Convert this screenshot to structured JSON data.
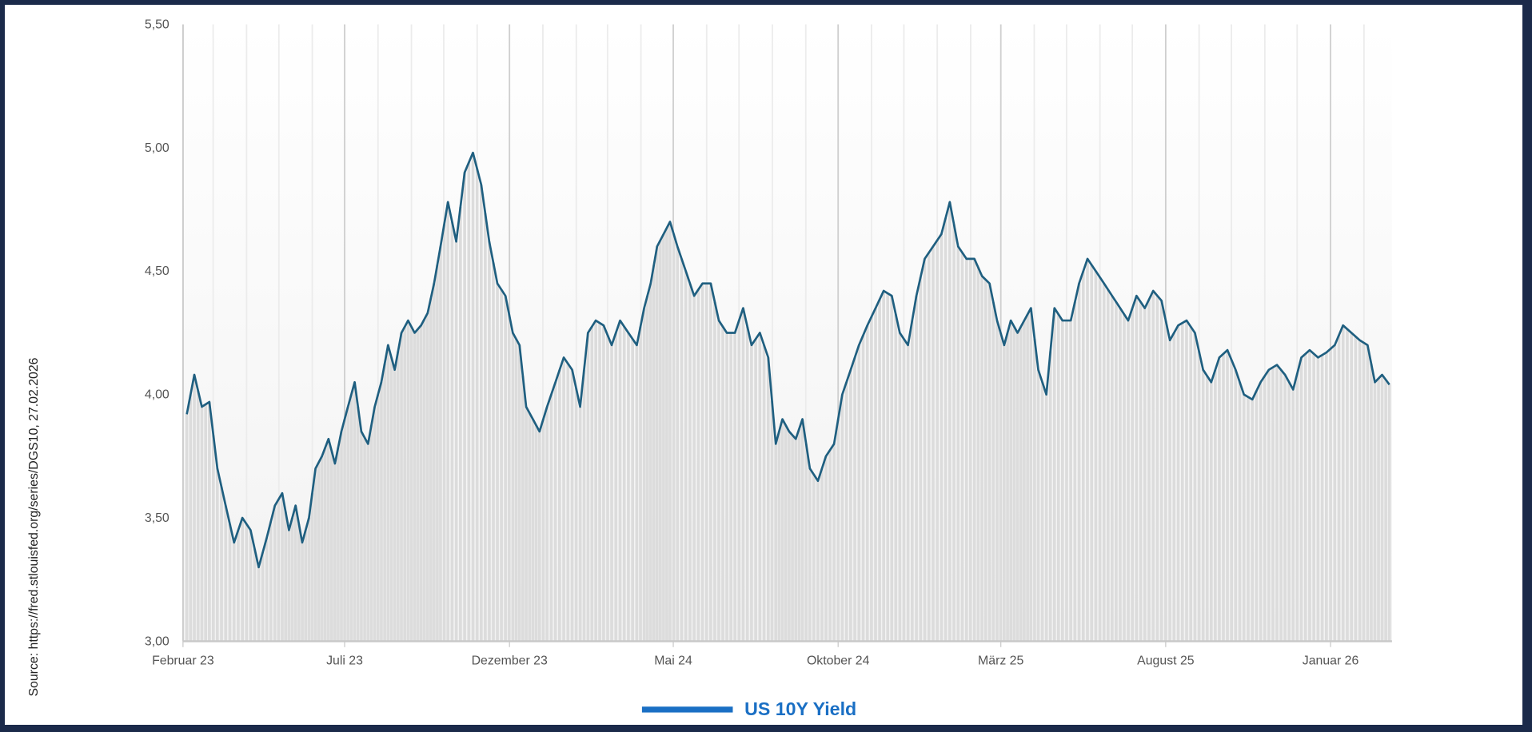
{
  "chart_data": {
    "type": "line",
    "title": "",
    "xlabel": "",
    "ylabel": "",
    "ylim": [
      3.0,
      5.5
    ],
    "yticks": [
      "3,00",
      "3,50",
      "4,00",
      "4,50",
      "5,00",
      "5,50"
    ],
    "xticks": [
      {
        "label": "Februar 23",
        "date": "2023-02"
      },
      {
        "label": "Juli 23",
        "date": "2023-07"
      },
      {
        "label": "Dezember 23",
        "date": "2023-12"
      },
      {
        "label": "Mai 24",
        "date": "2024-05"
      },
      {
        "label": "Oktober 24",
        "date": "2024-10"
      },
      {
        "label": "März 25",
        "date": "2025-03"
      },
      {
        "label": "August 25",
        "date": "2025-08"
      },
      {
        "label": "Januar 26",
        "date": "2026-01"
      }
    ],
    "grid": {
      "vertical_monthly": true,
      "horizontal": false
    },
    "legend_placement": "bottom-center",
    "series": [
      {
        "name": "US 10Y Yield",
        "line_color": "#1f5f80",
        "legend_color": "#1a6fc4",
        "bar_color": "#dcdcdc",
        "monthly": [
          {
            "month": "2023-02",
            "values": [
              3.92,
              4.08,
              3.95,
              3.97
            ]
          },
          {
            "month": "2023-03",
            "values": [
              3.7,
              3.55,
              3.4,
              3.5
            ]
          },
          {
            "month": "2023-04",
            "values": [
              3.45,
              3.3,
              3.42,
              3.55
            ]
          },
          {
            "month": "2023-05",
            "values": [
              3.6,
              3.45,
              3.55,
              3.4,
              3.5
            ]
          },
          {
            "month": "2023-06",
            "values": [
              3.7,
              3.75,
              3.82,
              3.72,
              3.85
            ]
          },
          {
            "month": "2023-07",
            "values": [
              3.95,
              4.05,
              3.85,
              3.8,
              3.95
            ]
          },
          {
            "month": "2023-08",
            "values": [
              4.05,
              4.2,
              4.1,
              4.25,
              4.3
            ]
          },
          {
            "month": "2023-09",
            "values": [
              4.25,
              4.28,
              4.33,
              4.45,
              4.6
            ]
          },
          {
            "month": "2023-10",
            "values": [
              4.78,
              4.62,
              4.9,
              4.98
            ]
          },
          {
            "month": "2023-11",
            "values": [
              4.85,
              4.62,
              4.45,
              4.4
            ]
          },
          {
            "month": "2023-12",
            "values": [
              4.25,
              4.2,
              3.95,
              3.9,
              3.85
            ]
          },
          {
            "month": "2024-01",
            "values": [
              3.95,
              4.05,
              4.15,
              4.1
            ]
          },
          {
            "month": "2024-02",
            "values": [
              3.95,
              4.25,
              4.3,
              4.28
            ]
          },
          {
            "month": "2024-03",
            "values": [
              4.2,
              4.3,
              4.25,
              4.2
            ]
          },
          {
            "month": "2024-04",
            "values": [
              4.35,
              4.45,
              4.6,
              4.65,
              4.7
            ]
          },
          {
            "month": "2024-05",
            "values": [
              4.6,
              4.5,
              4.4,
              4.45
            ]
          },
          {
            "month": "2024-06",
            "values": [
              4.45,
              4.3,
              4.25,
              4.25
            ]
          },
          {
            "month": "2024-07",
            "values": [
              4.35,
              4.2,
              4.25,
              4.15
            ]
          },
          {
            "month": "2024-08",
            "values": [
              3.8,
              3.9,
              3.85,
              3.82,
              3.9
            ]
          },
          {
            "month": "2024-09",
            "values": [
              3.7,
              3.65,
              3.75,
              3.8
            ]
          },
          {
            "month": "2024-10",
            "values": [
              4.0,
              4.1,
              4.2,
              4.28
            ]
          },
          {
            "month": "2024-11",
            "values": [
              4.35,
              4.42,
              4.4,
              4.25
            ]
          },
          {
            "month": "2024-12",
            "values": [
              4.2,
              4.4,
              4.55,
              4.6
            ]
          },
          {
            "month": "2025-01",
            "values": [
              4.65,
              4.78,
              4.6,
              4.55
            ]
          },
          {
            "month": "2025-02",
            "values": [
              4.55,
              4.48,
              4.45,
              4.3
            ]
          },
          {
            "month": "2025-03",
            "values": [
              4.2,
              4.3,
              4.25,
              4.3,
              4.35
            ]
          },
          {
            "month": "2025-04",
            "values": [
              4.1,
              4.0,
              4.35,
              4.3
            ]
          },
          {
            "month": "2025-05",
            "values": [
              4.3,
              4.45,
              4.55,
              4.5
            ]
          },
          {
            "month": "2025-06",
            "values": [
              4.45,
              4.4,
              4.35,
              4.3
            ]
          },
          {
            "month": "2025-07",
            "values": [
              4.4,
              4.35,
              4.42,
              4.38
            ]
          },
          {
            "month": "2025-08",
            "values": [
              4.22,
              4.28,
              4.3,
              4.25
            ]
          },
          {
            "month": "2025-09",
            "values": [
              4.1,
              4.05,
              4.15,
              4.18
            ]
          },
          {
            "month": "2025-10",
            "values": [
              4.1,
              4.0,
              3.98,
              4.05
            ]
          },
          {
            "month": "2025-11",
            "values": [
              4.1,
              4.12,
              4.08,
              4.02
            ]
          },
          {
            "month": "2025-12",
            "values": [
              4.15,
              4.18,
              4.15,
              4.17
            ]
          },
          {
            "month": "2026-01",
            "values": [
              4.2,
              4.28,
              4.25,
              4.22
            ]
          },
          {
            "month": "2026-02",
            "values": [
              4.2,
              4.05,
              4.08,
              4.04
            ]
          }
        ]
      }
    ]
  },
  "source": "Source: https://fred.stlouisfed.org/series/DGS10, 27.02.2026",
  "legend": {
    "label": "US 10Y Yield"
  }
}
